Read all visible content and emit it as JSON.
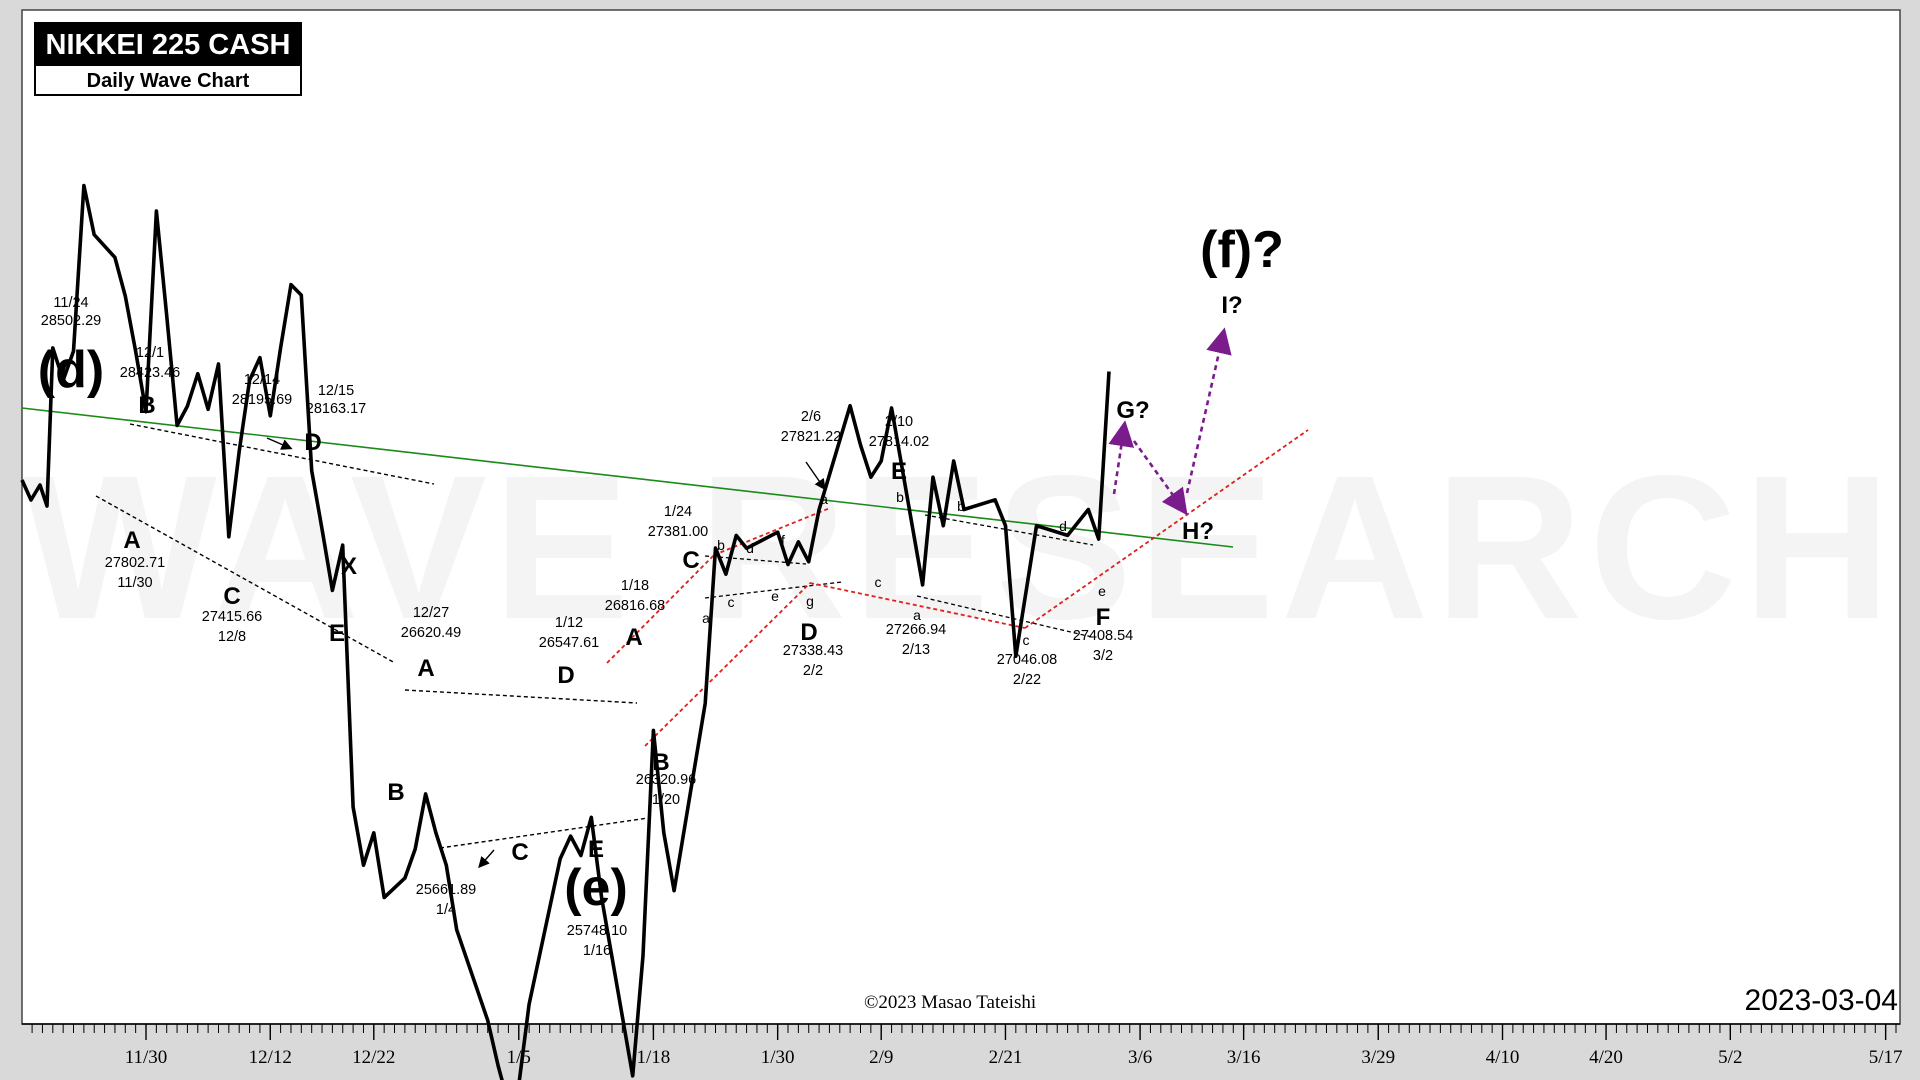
{
  "header": {
    "title": "NIKKEI 225 CASH",
    "subtitle": "Daily Wave Chart"
  },
  "date_stamp": "2023-03-04",
  "copyright": "©2023 Masao Tateishi",
  "watermark": "WAVE RESEARCH",
  "colors": {
    "price_line": "#000000",
    "green_trendline": "#1a8a1a",
    "red_guide": "#e0201c",
    "projection": "#7a1c8c",
    "background": "#ffffff",
    "frame": "#d9d9d9"
  },
  "chart_data": {
    "type": "line",
    "series": [
      {
        "values": [
          {
            "d": "2022-11-21",
            "v": 28000
          },
          {
            "d": "2022-11-22",
            "v": 27900
          },
          {
            "d": "2022-11-23",
            "v": 27990
          },
          {
            "d": "2022-11-24",
            "v": 28502.29
          },
          {
            "d": "2022-11-25",
            "v": 28350
          },
          {
            "d": "2022-11-27",
            "v": 28280
          },
          {
            "d": "2022-11-28",
            "v": 28160
          },
          {
            "d": "2022-11-29",
            "v": 27990
          },
          {
            "d": "2022-11-30",
            "v": 27802.71
          },
          {
            "d": "2022-12-01",
            "v": 28423.46
          },
          {
            "d": "2022-12-02",
            "v": 28100
          },
          {
            "d": "2022-12-03",
            "v": 27760
          },
          {
            "d": "2022-12-04",
            "v": 27820
          },
          {
            "d": "2022-12-05",
            "v": 27920
          },
          {
            "d": "2022-12-06",
            "v": 27810
          },
          {
            "d": "2022-12-07",
            "v": 27950
          },
          {
            "d": "2022-12-08",
            "v": 27415.66
          },
          {
            "d": "2022-12-09",
            "v": 27680
          },
          {
            "d": "2022-12-10",
            "v": 27900
          },
          {
            "d": "2022-12-11",
            "v": 27970
          },
          {
            "d": "2022-12-12",
            "v": 27790
          },
          {
            "d": "2022-12-13",
            "v": 28000
          },
          {
            "d": "2022-12-14",
            "v": 28195.69
          },
          {
            "d": "2022-12-15",
            "v": 28163.17
          },
          {
            "d": "2022-12-16",
            "v": 27620
          },
          {
            "d": "2022-12-17",
            "v": 27440
          },
          {
            "d": "2022-12-18",
            "v": 27250
          },
          {
            "d": "2022-12-19",
            "v": 27390
          },
          {
            "d": "2022-12-20",
            "v": 26580
          },
          {
            "d": "2022-12-21",
            "v": 26400
          },
          {
            "d": "2022-12-22",
            "v": 26500
          },
          {
            "d": "2022-12-23",
            "v": 26300
          },
          {
            "d": "2022-12-25",
            "v": 26360
          },
          {
            "d": "2022-12-26",
            "v": 26450
          },
          {
            "d": "2022-12-27",
            "v": 26620.49
          },
          {
            "d": "2022-12-28",
            "v": 26500
          },
          {
            "d": "2022-12-29",
            "v": 26400
          },
          {
            "d": "2022-12-30",
            "v": 26200
          },
          {
            "d": "2023-01-02",
            "v": 25920
          },
          {
            "d": "2023-01-03",
            "v": 25780
          },
          {
            "d": "2023-01-04",
            "v": 25661.89
          },
          {
            "d": "2023-01-05",
            "v": 25720
          },
          {
            "d": "2023-01-06",
            "v": 25970
          },
          {
            "d": "2023-01-09",
            "v": 26420
          },
          {
            "d": "2023-01-10",
            "v": 26490
          },
          {
            "d": "2023-01-11",
            "v": 26430
          },
          {
            "d": "2023-01-12",
            "v": 26547.61
          },
          {
            "d": "2023-01-13",
            "v": 26300
          },
          {
            "d": "2023-01-16",
            "v": 25748.1
          },
          {
            "d": "2023-01-17",
            "v": 26120
          },
          {
            "d": "2023-01-18",
            "v": 26816.68
          },
          {
            "d": "2023-01-19",
            "v": 26500
          },
          {
            "d": "2023-01-20",
            "v": 26320.96
          },
          {
            "d": "2023-01-23",
            "v": 26900
          },
          {
            "d": "2023-01-24",
            "v": 27381.0
          },
          {
            "d": "2023-01-25",
            "v": 27300
          },
          {
            "d": "2023-01-26",
            "v": 27420
          },
          {
            "d": "2023-01-27",
            "v": 27380
          },
          {
            "d": "2023-01-30",
            "v": 27430
          },
          {
            "d": "2023-01-31",
            "v": 27330
          },
          {
            "d": "2023-02-01",
            "v": 27400
          },
          {
            "d": "2023-02-02",
            "v": 27338.43
          },
          {
            "d": "2023-02-03",
            "v": 27500
          },
          {
            "d": "2023-02-06",
            "v": 27821.22
          },
          {
            "d": "2023-02-07",
            "v": 27700
          },
          {
            "d": "2023-02-08",
            "v": 27600
          },
          {
            "d": "2023-02-09",
            "v": 27650
          },
          {
            "d": "2023-02-10",
            "v": 27814.02
          },
          {
            "d": "2023-02-13",
            "v": 27266.94
          },
          {
            "d": "2023-02-14",
            "v": 27600
          },
          {
            "d": "2023-02-15",
            "v": 27450
          },
          {
            "d": "2023-02-16",
            "v": 27650
          },
          {
            "d": "2023-02-17",
            "v": 27500
          },
          {
            "d": "2023-02-20",
            "v": 27530
          },
          {
            "d": "2023-02-21",
            "v": 27450
          },
          {
            "d": "2023-02-22",
            "v": 27046.08
          },
          {
            "d": "2023-02-24",
            "v": 27450
          },
          {
            "d": "2023-02-27",
            "v": 27420
          },
          {
            "d": "2023-03-01",
            "v": 27500
          },
          {
            "d": "2023-03-02",
            "v": 27408.54
          },
          {
            "d": "2023-03-03",
            "v": 27927
          }
        ]
      }
    ],
    "x_ticks": [
      "11/30",
      "12/12",
      "12/22",
      "1/5",
      "1/18",
      "1/30",
      "2/9",
      "2/21",
      "3/6",
      "3/16",
      "3/29",
      "4/10",
      "4/20",
      "5/2",
      "5/17"
    ],
    "grid": false,
    "annotations": [
      {
        "text": "11/24",
        "text2": "28502.29"
      },
      {
        "text": "12/1",
        "text2": "28423.46"
      },
      {
        "text": "12/14",
        "text2": "28195.69"
      },
      {
        "text": "12/15",
        "text2": "28163.17"
      },
      {
        "text": "27802.71",
        "text2": "11/30"
      },
      {
        "text": "27415.66",
        "text2": "12/8"
      },
      {
        "text": "12/27",
        "text2": "26620.49"
      },
      {
        "text": "1/12",
        "text2": "26547.61"
      },
      {
        "text": "25661.89",
        "text2": "1/4"
      },
      {
        "text": "25748.10",
        "text2": "1/16"
      },
      {
        "text": "1/18",
        "text2": "26816.68"
      },
      {
        "text": "26320.96",
        "text2": "1/20"
      },
      {
        "text": "1/24",
        "text2": "27381.00"
      },
      {
        "text": "27338.43",
        "text2": "2/2"
      },
      {
        "text": "2/6",
        "text2": "27821.22"
      },
      {
        "text": "2/10",
        "text2": "27814.02"
      },
      {
        "text": "27266.94",
        "text2": "2/13"
      },
      {
        "text": "27046.08",
        "text2": "2/22"
      },
      {
        "text": "27408.54",
        "text2": "3/2"
      }
    ],
    "wave_labels": [
      {
        "text": "(d)",
        "size": "xl"
      },
      {
        "text": "B"
      },
      {
        "text": "A"
      },
      {
        "text": "C"
      },
      {
        "text": "D"
      },
      {
        "text": "X"
      },
      {
        "text": "E"
      },
      {
        "text": "A"
      },
      {
        "text": "B"
      },
      {
        "text": "C"
      },
      {
        "text": "D"
      },
      {
        "text": "E"
      },
      {
        "text": "(e)",
        "size": "xl"
      },
      {
        "text": "A"
      },
      {
        "text": "B"
      },
      {
        "text": "C"
      },
      {
        "text": "D"
      },
      {
        "text": "E"
      },
      {
        "text": "F"
      },
      {
        "text": "G?"
      },
      {
        "text": "H?"
      },
      {
        "text": "I?"
      },
      {
        "text": "(f)?",
        "size": "xl"
      },
      {
        "text": "a",
        "size": "sm"
      },
      {
        "text": "b",
        "size": "sm"
      },
      {
        "text": "c",
        "size": "sm"
      },
      {
        "text": "d",
        "size": "sm"
      },
      {
        "text": "e",
        "size": "sm"
      },
      {
        "text": "f",
        "size": "sm"
      },
      {
        "text": "g",
        "size": "sm"
      },
      {
        "text": "a",
        "size": "sm"
      },
      {
        "text": "b",
        "size": "sm"
      },
      {
        "text": "c",
        "size": "sm"
      },
      {
        "text": "a",
        "size": "sm"
      },
      {
        "text": "b",
        "size": "sm"
      },
      {
        "text": "c",
        "size": "sm"
      },
      {
        "text": "d",
        "size": "sm"
      },
      {
        "text": "e",
        "size": "sm"
      }
    ]
  }
}
